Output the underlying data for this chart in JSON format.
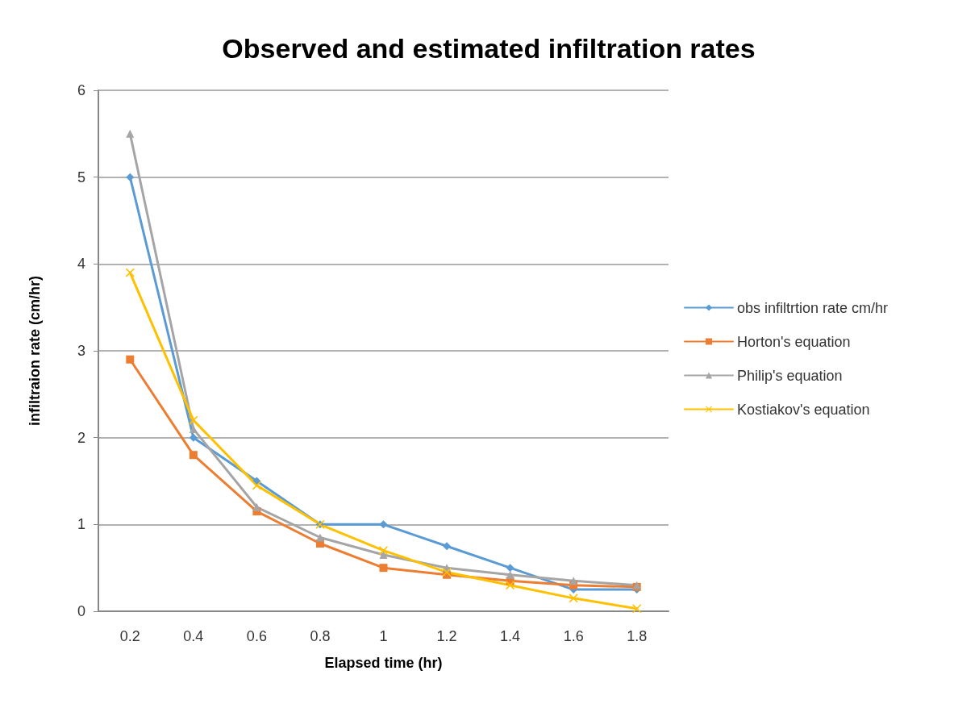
{
  "chart_data": {
    "type": "line",
    "title": "Observed and estimated infiltration rates",
    "xlabel": "Elapsed time (hr)",
    "ylabel": "infiltraion rate (cm/hr)",
    "categories": [
      "0.2",
      "0.4",
      "0.6",
      "0.8",
      "1",
      "1.2",
      "1.4",
      "1.6",
      "1.8"
    ],
    "series": [
      {
        "name": "obs infiltrtion rate cm/hr",
        "color": "#5b9bd5",
        "marker": "diamond",
        "values": [
          5,
          2,
          1.5,
          1,
          1,
          0.75,
          0.5,
          0.25,
          0.25
        ]
      },
      {
        "name": "Horton's equation",
        "color": "#ed7d31",
        "marker": "square",
        "values": [
          2.9,
          1.8,
          1.15,
          0.78,
          0.5,
          0.42,
          0.35,
          0.3,
          0.28
        ]
      },
      {
        "name": "Philip's equation",
        "color": "#a5a5a5",
        "marker": "triangle",
        "values": [
          5.5,
          2.1,
          1.2,
          0.85,
          0.65,
          0.5,
          0.42,
          0.35,
          0.3
        ]
      },
      {
        "name": "Kostiakov's equation",
        "color": "#ffc000",
        "marker": "cross",
        "values": [
          3.9,
          2.2,
          1.45,
          1,
          0.7,
          0.45,
          0.3,
          0.15,
          0.03
        ]
      }
    ],
    "ylim": [
      0,
      6
    ],
    "yticks": [
      0,
      1,
      2,
      3,
      4,
      5,
      6
    ],
    "grid": "y",
    "legend": "right"
  }
}
